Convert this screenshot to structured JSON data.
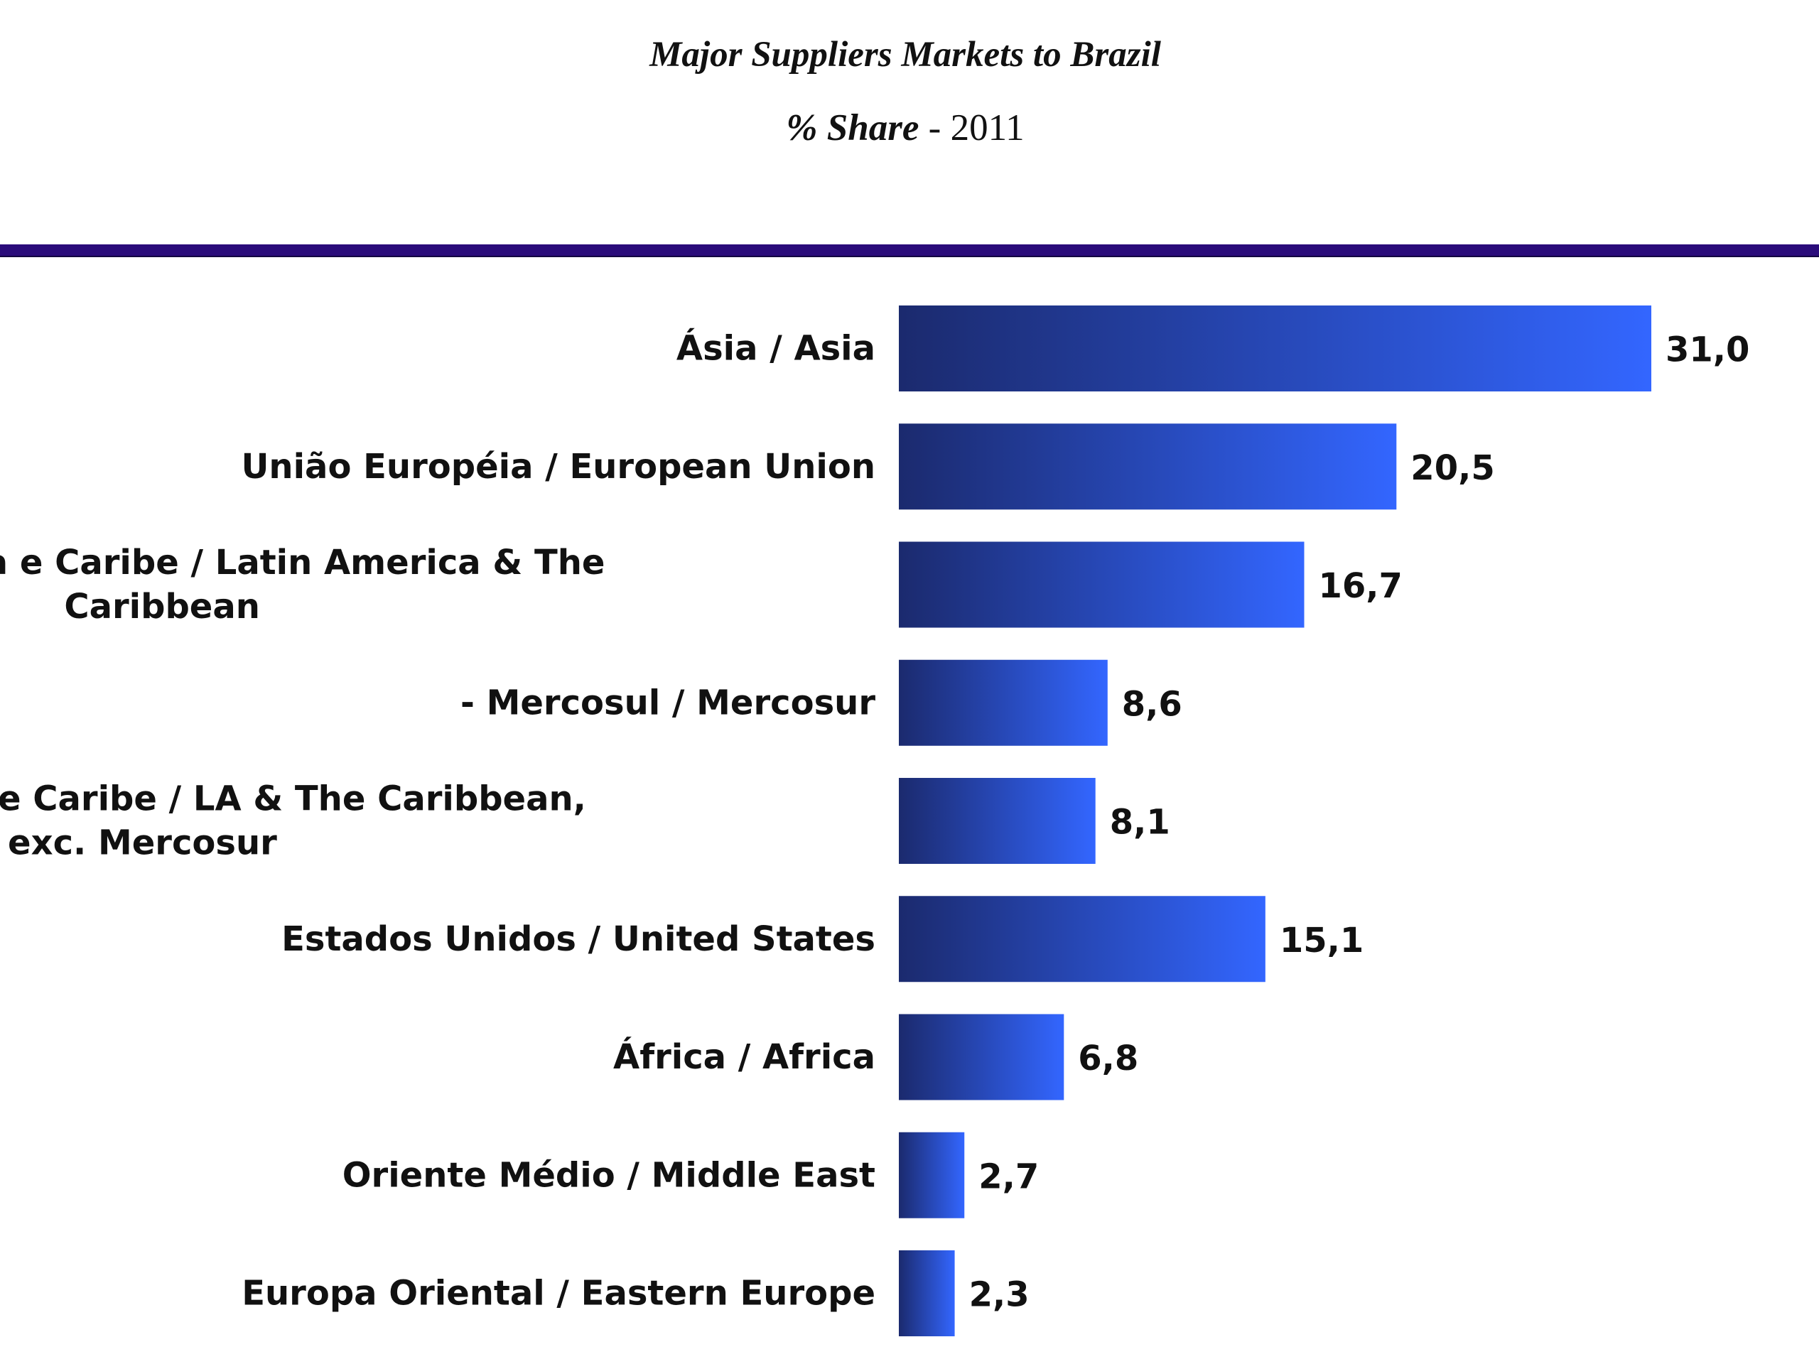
{
  "chart_data": {
    "type": "bar",
    "orientation": "horizontal",
    "title": "Major Suppliers Markets to Brazil",
    "subtitle_label": "% Share",
    "subtitle_separator": " - ",
    "subtitle_year": "2011",
    "categories": [
      [
        "Ásia / Asia"
      ],
      [
        "União Européia / European Union"
      ],
      [
        "América Latina e Caribe / Latin America & The",
        "Caribbean"
      ],
      [
        "- Mercosul / Mercosur"
      ],
      [
        "- Demais da AL e Caribe / LA & The Caribbean,",
        "exc. Mercosur"
      ],
      [
        "Estados Unidos / United States"
      ],
      [
        "África / Africa"
      ],
      [
        "Oriente Médio / Middle East"
      ],
      [
        "Europa Oriental / Eastern Europe"
      ]
    ],
    "values": [
      31.0,
      20.5,
      16.7,
      8.6,
      8.1,
      15.1,
      6.8,
      2.7,
      2.3
    ],
    "value_labels": [
      "31,0",
      "20,5",
      "16,7",
      "8,6",
      "8,1",
      "15,1",
      "6,8",
      "2,7",
      "2,3"
    ],
    "xlim": [
      0,
      31.0
    ],
    "legend": "none",
    "grid": false
  },
  "colors": {
    "bar_dark": "#1b2a6e",
    "bar_light": "#3366ff",
    "divider": "#2a0c7a",
    "text": "#111111"
  }
}
